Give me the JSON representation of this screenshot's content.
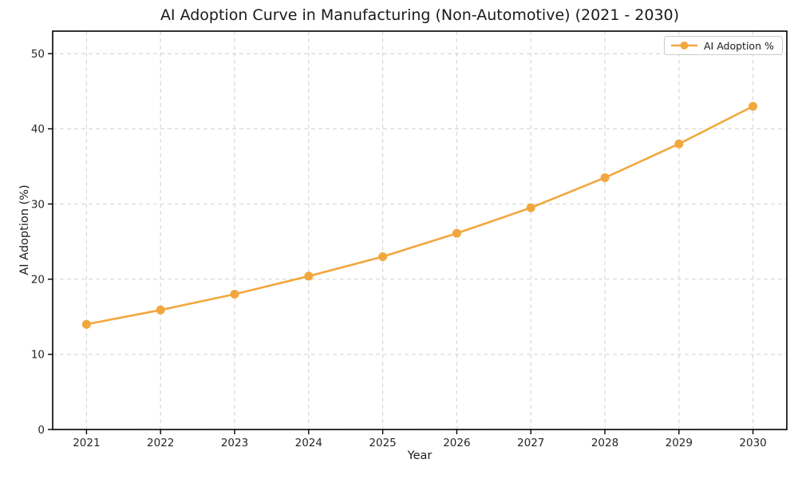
{
  "chart_data": {
    "type": "line",
    "title": "AI Adoption Curve in Manufacturing (Non-Automotive) (2021 - 2030)",
    "xlabel": "Year",
    "ylabel": "AI Adoption (%)",
    "categories": [
      "2021",
      "2022",
      "2023",
      "2024",
      "2025",
      "2026",
      "2027",
      "2028",
      "2029",
      "2030"
    ],
    "series": [
      {
        "name": "AI Adoption %",
        "values": [
          14.0,
          15.9,
          18.0,
          20.4,
          23.0,
          26.1,
          29.5,
          33.5,
          38.0,
          43.0
        ],
        "color": "#F2A73E",
        "marker": "circle",
        "line_width": 2.6,
        "marker_radius": 5.5
      }
    ],
    "ylim": [
      0,
      53
    ],
    "yticks": [
      0,
      10,
      20,
      30,
      40,
      50
    ],
    "grid": {
      "show": true,
      "style": "dashed"
    },
    "legend": {
      "position": "upper-right",
      "label": "AI Adoption %"
    },
    "colors": {
      "background": "#ffffff",
      "spine": "#000000",
      "tick_text": "#262626",
      "title_text": "#1a1a1a",
      "grid": "#d8d8d8",
      "legend_border": "#cccccc",
      "legend_background": "#ffffff"
    }
  }
}
